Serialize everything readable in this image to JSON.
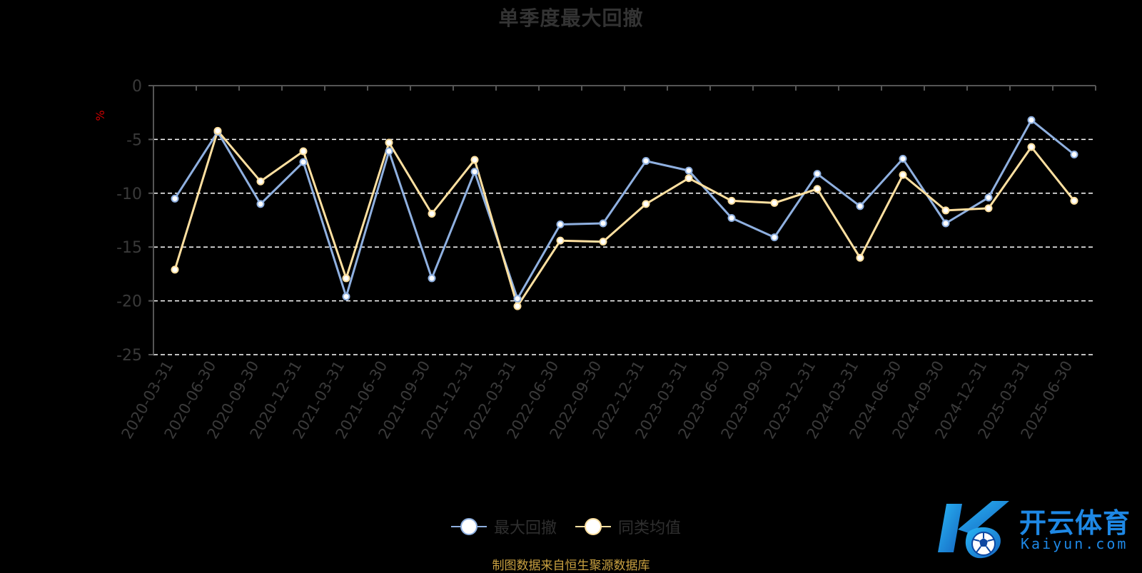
{
  "chart_data": {
    "type": "line",
    "title": "单季度最大回撤",
    "ylabel": "%",
    "ylim": [
      -25,
      0
    ],
    "yticks": [
      0,
      -5,
      -10,
      -15,
      -20,
      -25
    ],
    "categories": [
      "2020-03-31",
      "2020-06-30",
      "2020-09-30",
      "2020-12-31",
      "2021-03-31",
      "2021-06-30",
      "2021-09-30",
      "2021-12-31",
      "2022-03-31",
      "2022-06-30",
      "2022-09-30",
      "2022-12-31",
      "2023-03-31",
      "2023-06-30",
      "2023-09-30",
      "2023-12-31",
      "2024-03-31",
      "2024-06-30",
      "2024-09-30",
      "2024-12-31",
      "2025-03-31",
      "2025-06-30"
    ],
    "series": [
      {
        "name": "最大回撤",
        "color": "#8fb0e0",
        "values": [
          -10.5,
          -4.3,
          -11.0,
          -7.1,
          -19.6,
          -6.1,
          -17.9,
          -8.0,
          -19.8,
          -12.9,
          -12.8,
          -7.0,
          -7.9,
          -12.3,
          -14.1,
          -8.2,
          -11.2,
          -6.8,
          -12.8,
          -10.4,
          -3.2,
          -6.4
        ]
      },
      {
        "name": "同类均值",
        "color": "#ffe0a0",
        "values": [
          -17.1,
          -4.2,
          -8.9,
          -6.1,
          -17.9,
          -5.3,
          -11.9,
          -6.9,
          -20.5,
          -14.4,
          -14.5,
          -11.0,
          -8.6,
          -10.7,
          -10.9,
          -9.6,
          -16.0,
          -8.3,
          -11.6,
          -11.4,
          -5.7,
          -10.7
        ]
      }
    ],
    "grid": "dashed-horizontal",
    "legend_position": "bottom-center"
  },
  "source_text": "制图数据来自恒生聚源数据库",
  "logo": {
    "cn": "开云体育",
    "en": "Kaiyun.com"
  },
  "colors": {
    "background": "#000000",
    "axis": "#555555",
    "gridline": "#ffffff",
    "tick_label": "#3a3a3a",
    "title": "#333333",
    "ylabel": "#cc0000",
    "source": "#c8a040",
    "logo": "#1e88e5"
  }
}
